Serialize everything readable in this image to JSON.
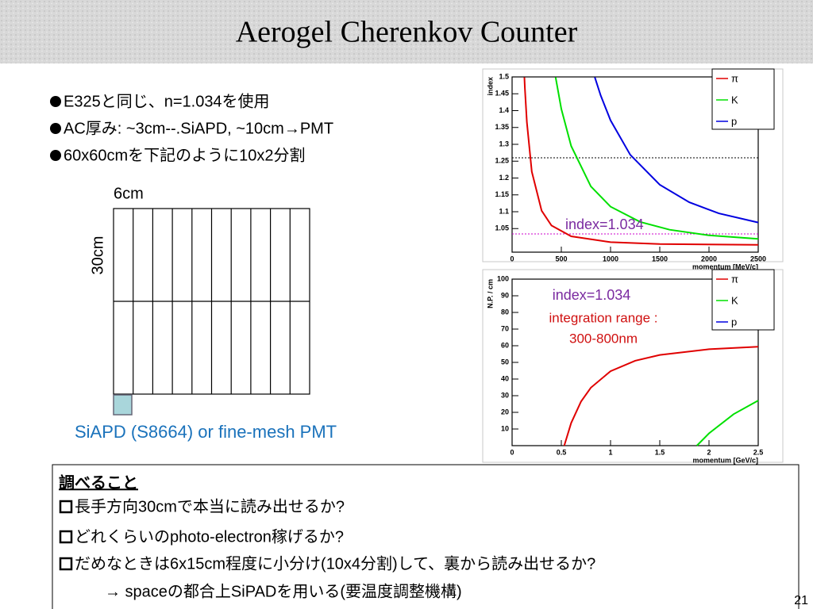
{
  "slide": {
    "title": "Aerogel Cherenkov Counter",
    "bullets": [
      "E325と同じ、n=1.034を使用",
      "AC厚み: ~3cm--.SiAPD, ~10cm→PMT",
      "60x60cmを下記のように10x2分割"
    ],
    "diagram": {
      "width_label": "6cm",
      "height_label": "30cm",
      "sensor_label": "SiAPD (S8664) or fine-mesh PMT"
    },
    "box": {
      "heading": "調べること",
      "items": [
        "長手方向30cmで本当に読み出せるか?",
        "どれくらいのphoto-electron稼げるか?",
        "だめなときは6x15cm程度に小分け(10x4分割)して、裏から読み出せるか?",
        "→ spaceの都合上SiPADを用いる(要温度調整機構)"
      ]
    },
    "page_number": "21"
  },
  "chart_data": [
    {
      "type": "line",
      "xlabel": "momentum [MeV/c]",
      "ylabel": "index",
      "xlim": [
        0,
        2500
      ],
      "ylim": [
        0.98,
        1.5
      ],
      "xticks": [
        0,
        500,
        1000,
        1500,
        2000,
        2500
      ],
      "yticks": [
        1.05,
        1.1,
        1.15,
        1.2,
        1.25,
        1.3,
        1.35,
        1.4,
        1.45,
        1.5
      ],
      "series": [
        {
          "name": "π",
          "color": "#e00000",
          "x": [
            125,
            130,
            150,
            200,
            300,
            400,
            600,
            1000,
            1500,
            2500
          ],
          "values": [
            1.499,
            1.467,
            1.366,
            1.219,
            1.103,
            1.059,
            1.027,
            1.0097,
            1.0043,
            1.0016
          ]
        },
        {
          "name": "K",
          "color": "#00e000",
          "x": [
            442,
            500,
            600,
            800,
            1000,
            1300,
            1600,
            2000,
            2500
          ],
          "values": [
            1.499,
            1.405,
            1.295,
            1.175,
            1.115,
            1.07,
            1.0465,
            1.03,
            1.0193
          ]
        },
        {
          "name": "p",
          "color": "#0000e0",
          "x": [
            840,
            900,
            1000,
            1200,
            1500,
            1800,
            2100,
            2500
          ],
          "values": [
            1.499,
            1.445,
            1.371,
            1.269,
            1.18,
            1.128,
            1.095,
            1.068
          ]
        }
      ],
      "reference_lines": [
        {
          "value": 1.26,
          "color": "#000000"
        },
        {
          "value": 1.034,
          "color": "#cc00cc"
        }
      ],
      "annotations": [
        "index=1.034"
      ]
    },
    {
      "type": "line",
      "xlabel": "momentum [GeV/c]",
      "ylabel": "N.P. / cm",
      "xlim": [
        0,
        2.5
      ],
      "ylim": [
        0,
        100
      ],
      "xticks": [
        0,
        0.5,
        1,
        1.5,
        2,
        2.5
      ],
      "yticks": [
        10,
        20,
        30,
        40,
        50,
        60,
        70,
        80,
        90,
        100
      ],
      "series": [
        {
          "name": "π",
          "color": "#e00000",
          "x": [
            0.53,
            0.6,
            0.7,
            0.8,
            1.0,
            1.25,
            1.5,
            2.0,
            2.5
          ],
          "values": [
            0,
            13.6,
            26.5,
            34.8,
            44.7,
            51.0,
            54.5,
            57.9,
            59.4
          ]
        },
        {
          "name": "K",
          "color": "#00e000",
          "x": [
            1.877,
            2.0,
            2.25,
            2.5
          ],
          "values": [
            0,
            7.4,
            18.9,
            27.1
          ]
        },
        {
          "name": "p",
          "color": "#0000e0",
          "x": [],
          "values": []
        }
      ],
      "reference_lines": [],
      "annotations": [
        "index=1.034",
        "integration range :",
        "300-800nm"
      ]
    }
  ]
}
